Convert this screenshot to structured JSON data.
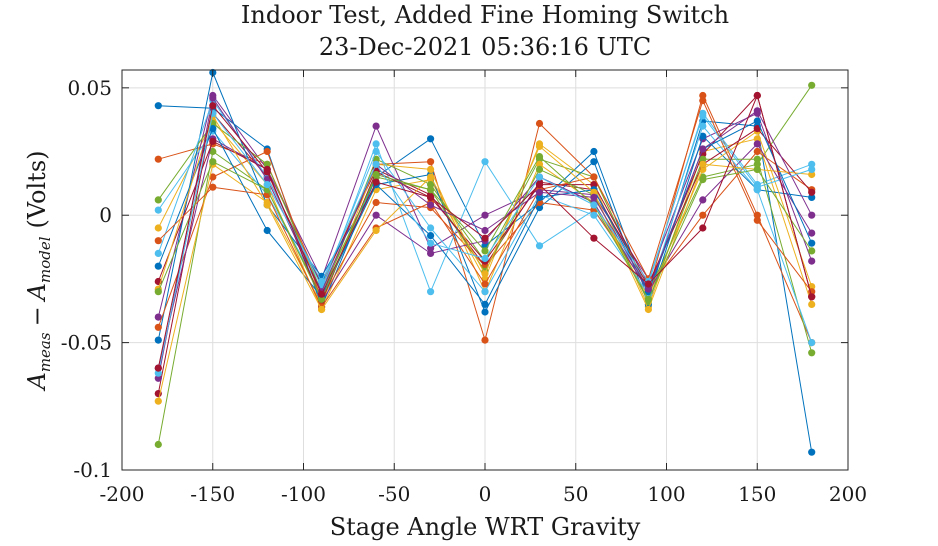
{
  "chart_data": {
    "type": "line",
    "title": "Indoor Test, Added Fine Homing Switch",
    "subtitle": "23-Dec-2021 05:36:16 UTC",
    "xlabel": "Stage Angle WRT Gravity",
    "ylabel_base": "A",
    "ylabel_sub1": "meas",
    "ylabel_minus": "−",
    "ylabel_sub2": "model",
    "ylabel_units": "(Volts)",
    "xlim": [
      -200,
      200
    ],
    "ylim": [
      -0.1,
      0.057
    ],
    "xticks": [
      -200,
      -150,
      -100,
      -50,
      0,
      50,
      100,
      150,
      200
    ],
    "xtick_labels": [
      "-200",
      "-150",
      "-100",
      "-50",
      "0",
      "50",
      "100",
      "150",
      "200"
    ],
    "yticks": [
      -0.1,
      -0.05,
      0,
      0.05
    ],
    "ytick_labels": [
      "-0.1",
      "-0.05",
      "0",
      "0.05"
    ],
    "grid": true,
    "x": [
      -180,
      -150,
      -120,
      -90,
      -60,
      -30,
      0,
      30,
      60,
      90,
      120,
      150,
      180
    ],
    "series": [
      {
        "color": "#0072BD",
        "values": [
          0.043,
          0.042,
          0.026,
          -0.036,
          0.015,
          0.03,
          -0.012,
          0.005,
          0.025,
          -0.033,
          0.037,
          0.035,
          -0.093
        ]
      },
      {
        "color": "#D95319",
        "values": [
          0.022,
          0.028,
          0.02,
          -0.028,
          0.02,
          0.021,
          -0.049,
          0.036,
          0.015,
          -0.03,
          0.047,
          0.0,
          -0.05
        ]
      },
      {
        "color": "#EDB120",
        "values": [
          -0.005,
          0.037,
          0.012,
          -0.037,
          0.01,
          0.014,
          -0.025,
          0.028,
          0.012,
          -0.036,
          0.025,
          0.03,
          -0.035
        ]
      },
      {
        "color": "#7E2F8E",
        "values": [
          -0.04,
          0.047,
          0.018,
          -0.025,
          0.035,
          -0.013,
          0.0,
          0.01,
          0.008,
          -0.025,
          0.03,
          0.04,
          -0.018
        ]
      },
      {
        "color": "#77AC30",
        "values": [
          -0.09,
          0.025,
          0.01,
          -0.032,
          0.022,
          0.012,
          -0.018,
          0.022,
          0.015,
          -0.03,
          0.015,
          0.02,
          0.051
        ]
      },
      {
        "color": "#4DBEEE",
        "values": [
          0.002,
          0.033,
          0.008,
          -0.03,
          0.028,
          -0.03,
          0.021,
          -0.012,
          0.002,
          -0.027,
          0.04,
          0.012,
          0.02
        ]
      },
      {
        "color": "#A2142F",
        "values": [
          -0.07,
          0.04,
          0.015,
          -0.027,
          0.018,
          0.008,
          -0.02,
          0.013,
          0.01,
          -0.028,
          0.024,
          0.047,
          -0.032
        ]
      },
      {
        "color": "#0072BD",
        "values": [
          -0.049,
          0.056,
          0.004,
          -0.024,
          0.012,
          0.016,
          -0.038,
          0.003,
          0.021,
          -0.035,
          0.031,
          0.01,
          0.007
        ]
      },
      {
        "color": "#D95319",
        "values": [
          -0.044,
          0.015,
          0.025,
          -0.033,
          0.005,
          0.003,
          -0.02,
          0.005,
          0.002,
          -0.029,
          0.0,
          0.025,
          0.01
        ]
      },
      {
        "color": "#EDB120",
        "values": [
          -0.073,
          0.02,
          0.005,
          -0.035,
          0.02,
          0.018,
          -0.03,
          0.02,
          0.005,
          -0.032,
          0.018,
          0.033,
          -0.028
        ]
      },
      {
        "color": "#7E2F8E",
        "values": [
          -0.06,
          0.03,
          0.018,
          -0.034,
          0.0,
          -0.015,
          -0.01,
          0.015,
          0.005,
          -0.03,
          0.006,
          0.028,
          -0.007
        ]
      },
      {
        "color": "#77AC30",
        "values": [
          0.006,
          0.036,
          0.02,
          -0.03,
          0.015,
          0.01,
          -0.022,
          0.018,
          0.008,
          -0.034,
          0.022,
          0.022,
          -0.054
        ]
      },
      {
        "color": "#4DBEEE",
        "values": [
          -0.015,
          0.045,
          0.015,
          -0.028,
          0.025,
          -0.005,
          -0.03,
          0.008,
          0.0,
          -0.031,
          0.035,
          0.01,
          -0.05
        ]
      },
      {
        "color": "#A2142F",
        "values": [
          -0.026,
          0.029,
          0.018,
          -0.034,
          0.017,
          0.007,
          -0.018,
          0.012,
          0.012,
          -0.027,
          0.02,
          0.034,
          0.009
        ]
      },
      {
        "color": "#0072BD",
        "values": [
          -0.02,
          0.034,
          -0.006,
          -0.032,
          0.012,
          -0.008,
          -0.035,
          0.007,
          0.01,
          -0.03,
          0.026,
          0.037,
          -0.011
        ]
      },
      {
        "color": "#D95319",
        "values": [
          -0.01,
          0.011,
          0.008,
          -0.036,
          -0.005,
          0.005,
          -0.027,
          0.01,
          0.015,
          -0.025,
          0.045,
          -0.002,
          -0.03
        ]
      },
      {
        "color": "#EDB120",
        "values": [
          -0.029,
          0.039,
          0.004,
          -0.037,
          -0.006,
          0.015,
          -0.023,
          0.027,
          0.009,
          -0.037,
          0.02,
          0.018,
          0.016
        ]
      },
      {
        "color": "#7E2F8E",
        "values": [
          -0.064,
          0.046,
          0.014,
          -0.03,
          0.02,
          0.004,
          -0.006,
          0.009,
          0.007,
          -0.029,
          0.026,
          0.041,
          0.0
        ]
      },
      {
        "color": "#77AC30",
        "values": [
          -0.03,
          0.021,
          0.01,
          -0.033,
          0.016,
          0.01,
          -0.014,
          0.023,
          0.004,
          -0.033,
          0.014,
          0.018,
          -0.014
        ]
      },
      {
        "color": "#4DBEEE",
        "values": [
          -0.062,
          0.04,
          0.012,
          -0.026,
          0.02,
          -0.011,
          -0.017,
          0.015,
          0.004,
          -0.026,
          0.039,
          0.011,
          0.018
        ]
      },
      {
        "color": "#A2142F",
        "values": [
          -0.06,
          0.043,
          0.017,
          -0.031,
          0.013,
          0.007,
          -0.009,
          0.012,
          -0.009,
          -0.027,
          -0.005,
          0.047,
          -0.032
        ]
      }
    ]
  }
}
